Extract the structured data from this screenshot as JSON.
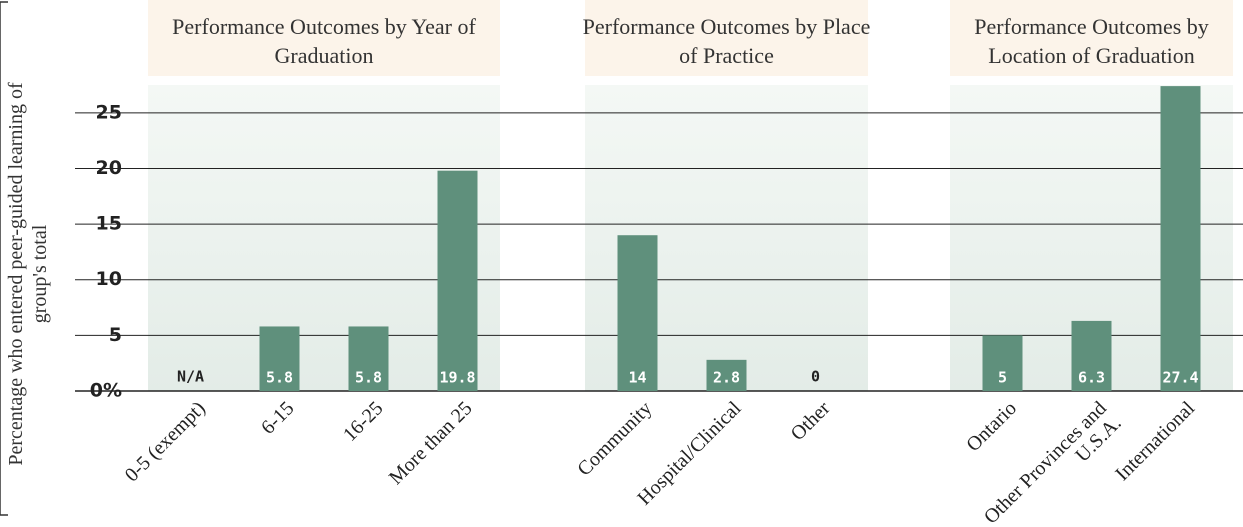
{
  "chart_data": {
    "type": "bar",
    "y_label": "Percentage who entered peer-guided learning of group's total",
    "ylim": [
      0,
      27.5
    ],
    "yticks": [
      {
        "value": 0,
        "label": "0%"
      },
      5,
      10,
      15,
      20,
      25
    ],
    "grid": true,
    "color": "#5f907c",
    "groups": [
      {
        "title": "Performance Outcomes by Year of Graduation",
        "categories": [
          "0-5 (exempt)",
          "6-15",
          "16-25",
          "More than 25"
        ],
        "values": [
          null,
          5.8,
          5.8,
          19.8
        ],
        "value_labels": [
          "N/A",
          "5.8",
          "5.8",
          "19.8"
        ]
      },
      {
        "title": "Performance Outcomes by Place of Practice",
        "categories": [
          "Community",
          "Hospital/Clinical",
          "Other"
        ],
        "values": [
          14,
          2.8,
          0
        ]
      },
      {
        "title": "Performance Outcomes by Location of Graduation",
        "categories": [
          "Ontario",
          "Other Provinces and U.S.A.",
          "International"
        ],
        "values": [
          5,
          6.3,
          27.4
        ]
      }
    ]
  }
}
